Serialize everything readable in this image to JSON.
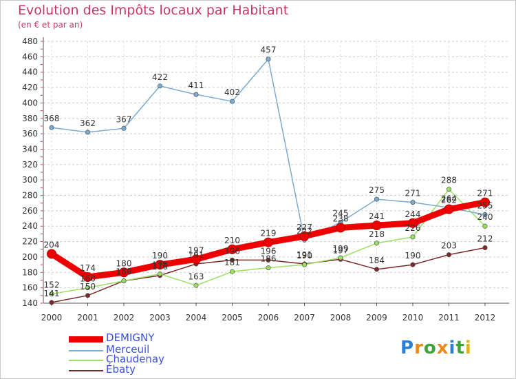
{
  "chart_data": {
    "type": "line",
    "title": "Evolution des Impôts locaux par Habitant",
    "subtitle": "(en € et par an)",
    "x": [
      "2000",
      "2001",
      "2002",
      "2003",
      "2004",
      "2005",
      "2006",
      "2007",
      "2008",
      "2009",
      "2010",
      "2011",
      "2012"
    ],
    "ylim": [
      140,
      480
    ],
    "yticks": [
      140,
      160,
      180,
      200,
      220,
      240,
      260,
      280,
      300,
      320,
      340,
      360,
      380,
      400,
      420,
      440,
      460,
      480
    ],
    "series": [
      {
        "name": "DEMIGNY",
        "color": "#ee0000",
        "values": [
          204,
          174,
          180,
          190,
          197,
          210,
          219,
          227,
          238,
          241,
          244,
          262,
          271
        ],
        "labels": [
          "204",
          "174",
          "180",
          "190",
          "197",
          "210",
          "219",
          "227",
          "238",
          "241",
          "244",
          "262",
          "271"
        ]
      },
      {
        "name": "Merceuil",
        "color": "#7aaad2",
        "values": [
          368,
          362,
          367,
          422,
          411,
          402,
          457,
          222,
          245,
          275,
          271,
          264,
          255
        ],
        "labels": [
          "368",
          "362",
          "367",
          "422",
          "411",
          "402",
          "457",
          "222",
          "245",
          "275",
          "271",
          "264",
          "255"
        ]
      },
      {
        "name": "Chaudenay",
        "color": "#9be064",
        "values": [
          152,
          160,
          169,
          178,
          163,
          181,
          186,
          190,
          199,
          218,
          226,
          288,
          240
        ],
        "labels": [
          "152",
          "160",
          "169",
          "178",
          "163",
          "181",
          "186",
          "190",
          "199",
          "218",
          "226",
          "288",
          "240"
        ]
      },
      {
        "name": "Ébaty",
        "color": "#7a2a2a",
        "values": [
          141,
          150,
          169,
          176,
          191,
          196,
          196,
          191,
          197,
          184,
          190,
          203,
          212
        ],
        "labels": [
          "141",
          "150",
          "169",
          "176",
          "191",
          "196",
          "196",
          "191",
          "197",
          "184",
          "190",
          "203",
          "212"
        ]
      }
    ]
  },
  "legend": {
    "items": [
      "DEMIGNY",
      "Merceuil",
      "Chaudenay",
      "Ébaty"
    ]
  },
  "logo": {
    "text": "Proxiti",
    "colors": [
      "#2a7fd4",
      "#e98b1b",
      "#3fa43a",
      "#e98b1b",
      "#2a7fd4",
      "#3fa43a",
      "#e0b515"
    ]
  }
}
